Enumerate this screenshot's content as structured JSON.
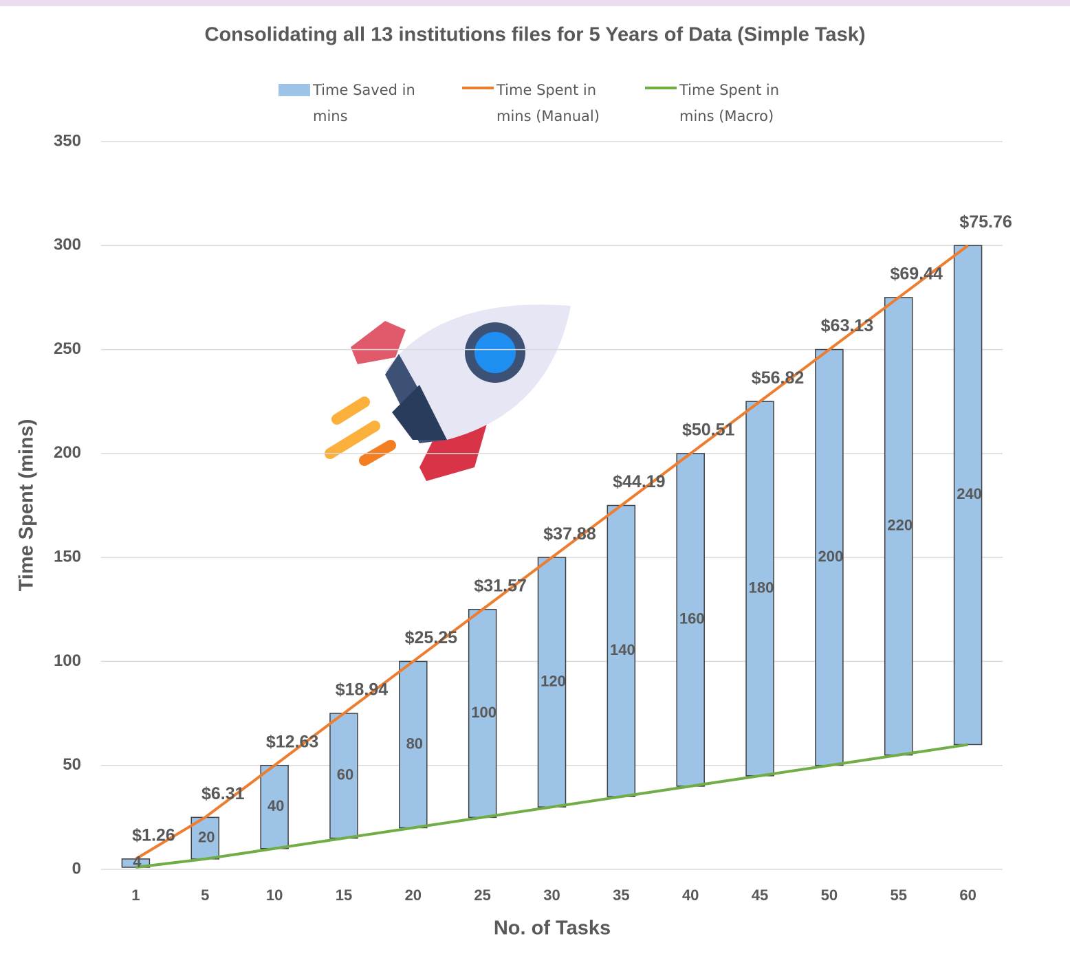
{
  "chart_data": {
    "type": "floating-bar-line",
    "title": "Consolidating all 13 institutions files for 5 Years of Data (Simple Task)",
    "x_label": "No. of Tasks",
    "y_label": "Time Spent (mins)",
    "categories": [
      "1",
      "5",
      "10",
      "15",
      "20",
      "25",
      "30",
      "35",
      "40",
      "45",
      "50",
      "55",
      "60"
    ],
    "series": [
      {
        "name": "Time Saved in mins",
        "kind": "bar",
        "color": "#9dc3e6",
        "values": [
          4,
          20,
          40,
          60,
          80,
          100,
          120,
          140,
          160,
          180,
          200,
          220,
          240
        ]
      },
      {
        "name": "Time Spent in mins (Manual)",
        "kind": "line",
        "color": "#ed7d31",
        "values": [
          5,
          25,
          50,
          75,
          100,
          125,
          150,
          175,
          200,
          225,
          250,
          275,
          300
        ]
      },
      {
        "name": "Time Spent in mins (Macro)",
        "kind": "line",
        "color": "#70ad47",
        "values": [
          1,
          5,
          10,
          15,
          20,
          25,
          30,
          35,
          40,
          45,
          50,
          55,
          60
        ]
      }
    ],
    "annotations": [
      "$1.26",
      "$6.31",
      "$12.63",
      "$18.94",
      "$25.25",
      "$31.57",
      "$37.88",
      "$44.19",
      "$50.51",
      "$56.82",
      "$63.13",
      "$69.44",
      "$75.76"
    ],
    "ylim": [
      0,
      350
    ],
    "yticks": [
      0,
      50,
      100,
      150,
      200,
      250,
      300,
      350
    ],
    "grid": true
  }
}
